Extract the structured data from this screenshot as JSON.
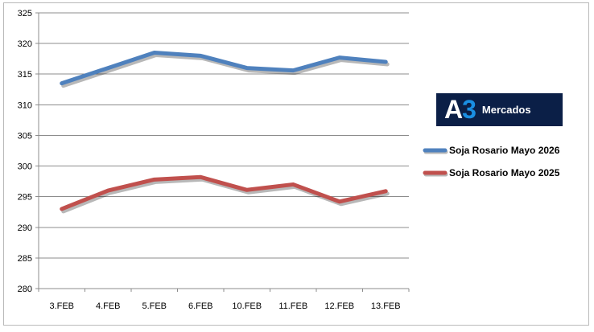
{
  "chart_data": {
    "type": "line",
    "categories": [
      "3.FEB",
      "4.FEB",
      "5.FEB",
      "6.FEB",
      "10.FEB",
      "11.FEB",
      "12.FEB",
      "13.FEB"
    ],
    "series": [
      {
        "name": "Soja Rosario Mayo 2026",
        "color": "#4f81bd",
        "values": [
          313.5,
          316.0,
          318.5,
          318.0,
          316.0,
          315.6,
          317.7,
          317.0
        ]
      },
      {
        "name": "Soja Rosario Mayo 2025",
        "color": "#c0504d",
        "values": [
          293.0,
          296.0,
          297.8,
          298.2,
          296.1,
          297.0,
          294.2,
          295.9
        ]
      }
    ],
    "ylim": [
      280,
      325
    ],
    "yticks": [
      280,
      285,
      290,
      295,
      300,
      305,
      310,
      315,
      320,
      325
    ],
    "grid": true,
    "legend_position": "right"
  },
  "logo": {
    "a": "A",
    "three": "3",
    "text": "Mercados"
  }
}
